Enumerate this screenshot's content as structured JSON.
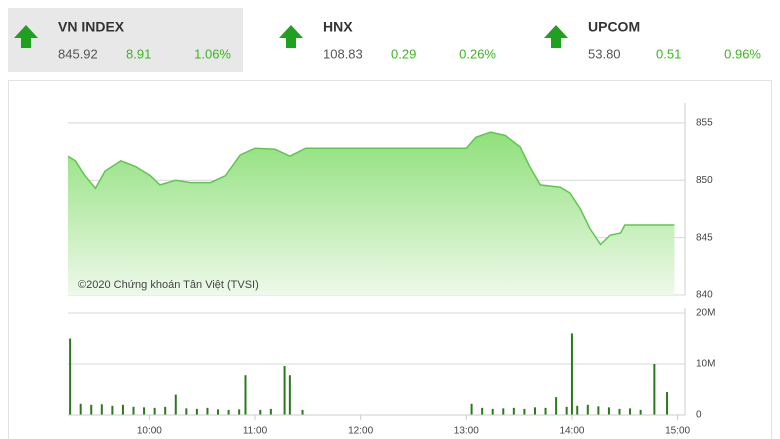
{
  "header": {
    "indices": [
      {
        "name": "VN INDEX",
        "value": "845.92",
        "change": "8.91",
        "percent": "1.06%"
      },
      {
        "name": "HNX",
        "value": "108.83",
        "change": "0.29",
        "percent": "0.26%"
      },
      {
        "name": "UPCOM",
        "value": "53.80",
        "change": "0.51",
        "percent": "0.96%"
      }
    ]
  },
  "chart_data": [
    {
      "type": "area",
      "annotation": "©2020 Chứng khoán Tân Việt (TVSI)",
      "color": "#5cc94a",
      "x": [
        9.23,
        9.3,
        9.39,
        9.49,
        9.58,
        9.73,
        9.87,
        10.01,
        10.1,
        10.25,
        10.39,
        10.58,
        10.72,
        10.86,
        11.0,
        11.19,
        11.33,
        11.48,
        13.0,
        13.09,
        13.23,
        13.37,
        13.51,
        13.6,
        13.7,
        13.89,
        13.98,
        14.08,
        14.17,
        14.27,
        14.36,
        14.46,
        14.5,
        14.97
      ],
      "values": [
        852.1,
        851.7,
        850.4,
        849.3,
        850.8,
        851.7,
        851.2,
        850.4,
        849.6,
        850.0,
        849.8,
        849.8,
        850.4,
        852.2,
        852.8,
        852.7,
        852.1,
        852.8,
        852.8,
        853.75,
        854.2,
        853.9,
        852.9,
        851.2,
        849.6,
        849.4,
        848.9,
        847.5,
        845.8,
        844.4,
        845.2,
        845.4,
        846.1,
        846.1
      ],
      "xlim": [
        9.23,
        15.07
      ],
      "ylim": [
        840,
        856.3
      ],
      "yticks": [
        840,
        845,
        850,
        855
      ],
      "grid": true
    },
    {
      "type": "bar",
      "color": "#2a7a1a",
      "x": [
        9.25,
        9.35,
        9.45,
        9.55,
        9.65,
        9.75,
        9.85,
        9.95,
        10.05,
        10.15,
        10.25,
        10.35,
        10.45,
        10.55,
        10.65,
        10.75,
        10.85,
        10.91,
        11.05,
        11.15,
        11.28,
        11.33,
        11.45,
        13.05,
        13.15,
        13.25,
        13.35,
        13.45,
        13.55,
        13.65,
        13.75,
        13.85,
        13.95,
        14.0,
        14.05,
        14.15,
        14.25,
        14.35,
        14.45,
        14.55,
        14.65,
        14.78,
        14.9
      ],
      "values": [
        15,
        2.2,
        2,
        2.1,
        1.8,
        2,
        1.6,
        1.5,
        1.4,
        1.6,
        4,
        1.3,
        1.2,
        1.4,
        1.1,
        1,
        1.1,
        7.8,
        1,
        1.2,
        9.6,
        7.8,
        1,
        2.2,
        1.4,
        1.2,
        1.3,
        1.4,
        1.2,
        1.5,
        1.4,
        3.5,
        1.6,
        16,
        1.8,
        2,
        1.7,
        1.5,
        1.2,
        1.3,
        1,
        10,
        4.5
      ],
      "xlim": [
        9.23,
        15.07
      ],
      "ylim": [
        0,
        20
      ],
      "yticks": [
        0,
        {
          "value": 10,
          "label": "10M"
        },
        {
          "value": 20,
          "label": "20M"
        }
      ],
      "xticks": [
        {
          "value": 10,
          "label": "10:00"
        },
        {
          "value": 11,
          "label": "11:00"
        },
        {
          "value": 12,
          "label": "12:00"
        },
        {
          "value": 13,
          "label": "13:00"
        },
        {
          "value": 14,
          "label": "14:00"
        },
        {
          "value": 15,
          "label": "15:00"
        }
      ],
      "grid": true
    }
  ]
}
